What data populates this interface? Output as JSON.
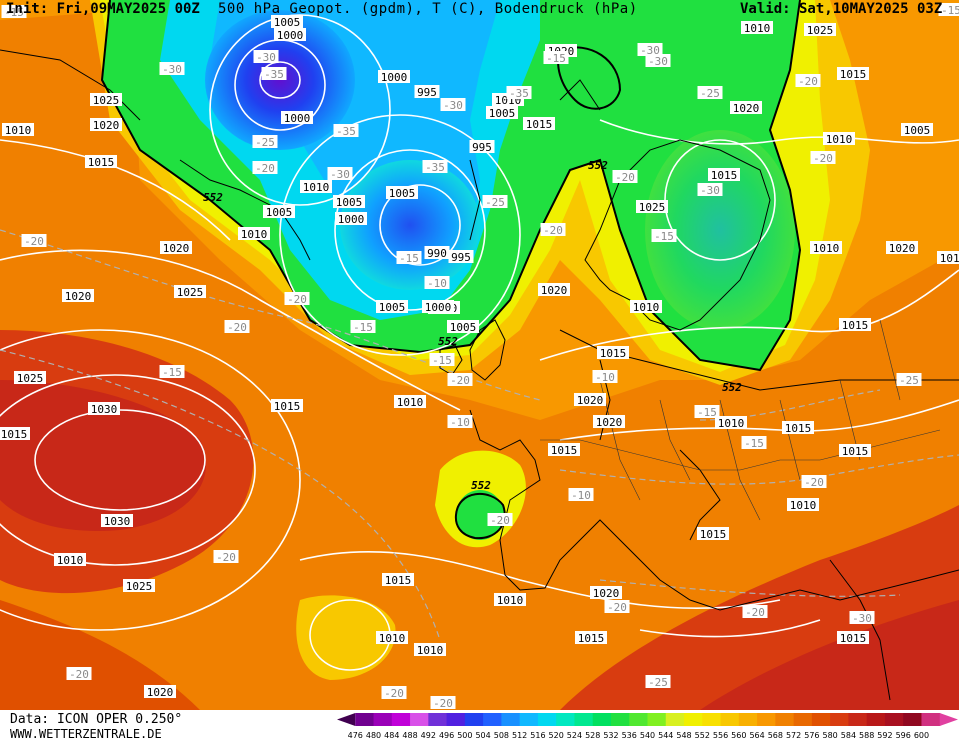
{
  "header": {
    "init": "Init: Fri,09MAY2025 00Z",
    "title": "500 hPa Geopot. (gpdm), T (C), Bodendruck (hPa)",
    "valid": "Valid: Sat,10MAY2025 03Z"
  },
  "footer": {
    "data_source": "Data: ICON OPER 0.250°",
    "website": "WWW.WETTERZENTRALE.DE"
  },
  "colorbar": {
    "ticks": [
      "476",
      "480",
      "484",
      "488",
      "492",
      "496",
      "500",
      "504",
      "508",
      "512",
      "516",
      "520",
      "524",
      "528",
      "532",
      "536",
      "540",
      "544",
      "548",
      "552",
      "556",
      "560",
      "564",
      "568",
      "572",
      "576",
      "580",
      "584",
      "588",
      "592",
      "596",
      "600"
    ],
    "colors": [
      "#400050",
      "#700090",
      "#9a00b8",
      "#c000d8",
      "#d850e8",
      "#7030d8",
      "#5020e0",
      "#2040f0",
      "#2060ff",
      "#1890ff",
      "#10b8ff",
      "#00d8f0",
      "#00e8c0",
      "#00e890",
      "#00e060",
      "#20e040",
      "#50e830",
      "#80f020",
      "#d8f020",
      "#f0f000",
      "#f8e000",
      "#f8c800",
      "#f8b000",
      "#f89800",
      "#f08000",
      "#e86800",
      "#e05000",
      "#d83c10",
      "#c82818",
      "#b81818",
      "#a81020",
      "#900820",
      "#d03080",
      "#e040a0"
    ]
  },
  "map": {
    "isobars": [
      "1005",
      "1000",
      "1025",
      "1020",
      "1015",
      "1010",
      "1005",
      "1010",
      "1000",
      "995",
      "1000",
      "1005",
      "1000",
      "1005",
      "1000",
      "1005",
      "995",
      "990",
      "995",
      "1000",
      "1005",
      "1010",
      "1015",
      "1020",
      "1025",
      "1020",
      "1030",
      "1030",
      "1025",
      "1020",
      "1015",
      "1010",
      "1015",
      "1020",
      "1015",
      "1020",
      "1015",
      "1010",
      "1015",
      "1010",
      "1015",
      "1015",
      "1010",
      "1025",
      "1015",
      "1010",
      "1020",
      "1015",
      "1010",
      "1020",
      "1005",
      "1010",
      "1015",
      "1020",
      "1025",
      "1015",
      "1010",
      "1020",
      "1005",
      "1010",
      "1015",
      "1010",
      "1015",
      "1020",
      "1025",
      "1010",
      "1010",
      "1010"
    ],
    "temperatures": [
      "-30",
      "-30",
      "-35",
      "-25",
      "-20",
      "-35",
      "-30",
      "-35",
      "-25",
      "-20",
      "-20",
      "-20",
      "-15",
      "-30",
      "-35",
      "-30",
      "-25",
      "-20",
      "-20",
      "-20",
      "-15",
      "-20",
      "-20",
      "-15",
      "-10",
      "-15",
      "-15",
      "-10",
      "-10",
      "-10",
      "-15",
      "-15",
      "-20",
      "-25",
      "-20",
      "-20",
      "-30",
      "-25",
      "-20",
      "-20",
      "-20",
      "-15",
      "-15",
      "-15",
      "-20",
      "-20",
      "-30",
      "-30"
    ],
    "contour_552": [
      "552",
      "552",
      "552",
      "552",
      "552"
    ]
  }
}
